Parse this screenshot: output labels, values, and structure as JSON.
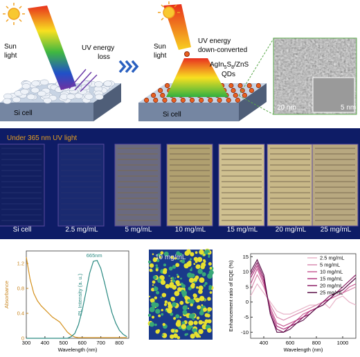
{
  "schematic_left": {
    "sun_label": [
      "Sun",
      "light"
    ],
    "loss_label": [
      "UV energy",
      "loss"
    ],
    "cell_label": "Si cell"
  },
  "schematic_right": {
    "sun_label": [
      "Sun",
      "light"
    ],
    "convert_label": [
      "UV energy",
      "down-converted"
    ],
    "qd_formula": [
      "AgIn",
      "5",
      "S",
      "8",
      "/ZnS"
    ],
    "qd_word": "QDs",
    "cell_label": "Si cell"
  },
  "tem": {
    "scale_main": "20 nm",
    "scale_inset": "5 nm"
  },
  "photo": {
    "caption": "Under 365 nm UV light",
    "samples": [
      "Si cell",
      "2.5 mg/mL",
      "5 mg/mL",
      "10 mg/mL",
      "15 mg/mL",
      "20 mg/mL",
      "25 mg/mL"
    ]
  },
  "fluorescence_image": {
    "label": "10 mg/mL"
  },
  "chart_data": [
    {
      "type": "line",
      "xlabel": "Wavelength (nm)",
      "ylabel": "Absorbance",
      "y2label": "PL Intensity (a. u.)",
      "ycolor": "#c8841c",
      "y2color": "#2a8a82",
      "x": [
        300,
        320,
        340,
        360,
        380,
        400,
        420,
        440,
        460,
        480,
        500,
        520,
        540,
        560,
        580,
        600,
        620,
        640,
        660,
        680,
        700,
        720,
        740,
        760,
        780,
        800,
        820,
        840
      ],
      "series": [
        {
          "color": "#d4901c",
          "values": [
            1.3,
            0.95,
            0.72,
            0.6,
            0.52,
            0.46,
            0.4,
            0.34,
            0.3,
            0.26,
            0.18,
            0.1,
            0.05,
            0.02,
            0.01,
            0.01,
            0.01,
            0.01,
            0.01,
            0.01,
            0.01,
            0.01,
            0.01,
            0.01,
            0.01,
            0.01,
            0.01,
            0.01
          ]
        },
        {
          "color": "#2a8a82",
          "axis": "y2",
          "values": [
            0,
            0,
            0,
            0,
            0,
            0,
            0,
            0,
            0,
            0,
            0,
            0,
            0.02,
            0.06,
            0.17,
            0.35,
            0.58,
            0.82,
            0.97,
            0.98,
            0.88,
            0.7,
            0.5,
            0.32,
            0.19,
            0.1,
            0.05,
            0.02
          ]
        }
      ],
      "annotations": [
        {
          "text": "665nm",
          "x": 665
        }
      ],
      "xlim": [
        300,
        850
      ],
      "xticks": [
        300,
        400,
        500,
        600,
        700,
        800
      ],
      "ylim": [
        0,
        1.4
      ],
      "yticks": [
        0,
        0.4,
        0.8,
        1.2
      ],
      "y2lim": [
        0,
        1.1
      ],
      "y2ticks": []
    },
    {
      "type": "line",
      "xlabel": "Wavelength (nm)",
      "ylabel": "Enhancement ratio of EQE (%)",
      "legend": "upper right",
      "x": [
        300,
        350,
        400,
        450,
        500,
        550,
        600,
        650,
        700,
        750,
        800,
        850,
        900,
        950,
        1000,
        1050,
        1100
      ],
      "series": [
        {
          "name": "2.5 mg/mL",
          "color": "#e8b4c8",
          "values": [
            2,
            6,
            3,
            0,
            -3,
            -4,
            -4,
            -3,
            -2,
            -1,
            -1,
            0,
            -2,
            1,
            2,
            0,
            -1
          ]
        },
        {
          "name": "5 mg/mL",
          "color": "#d98cb0",
          "values": [
            4,
            9,
            5,
            -1,
            -5,
            -6,
            -5,
            -4,
            -3,
            -2,
            -1,
            0,
            1,
            2,
            3,
            4,
            5
          ]
        },
        {
          "name": "10 mg/mL",
          "color": "#c85c95",
          "values": [
            6,
            11,
            6,
            -2,
            -7,
            -8,
            -7,
            -6,
            -4,
            -3,
            -2,
            -1,
            1,
            2,
            3,
            5,
            6
          ]
        },
        {
          "name": "15 mg/mL",
          "color": "#b0307a",
          "values": [
            8,
            12,
            7,
            -3,
            -8,
            -9,
            -8,
            -6,
            -5,
            -3,
            -2,
            0,
            1,
            3,
            4,
            6,
            8
          ]
        },
        {
          "name": "20 mg/mL",
          "color": "#8a1c64",
          "values": [
            9,
            13,
            8,
            -4,
            -9,
            -10,
            -8,
            -7,
            -5,
            -4,
            -2,
            0,
            2,
            3,
            5,
            7,
            9
          ]
        },
        {
          "name": "25 mg/mL",
          "color": "#5a1048",
          "values": [
            10,
            14,
            9,
            -4,
            -10,
            -10,
            -9,
            -7,
            -6,
            -4,
            -2,
            -1,
            1,
            3,
            4,
            6,
            8
          ]
        }
      ],
      "xlim": [
        300,
        1100
      ],
      "xticks": [
        400,
        600,
        800,
        1000
      ],
      "ylim": [
        -12,
        16
      ],
      "yticks": [
        -10,
        -5,
        0,
        5,
        10,
        15
      ]
    }
  ]
}
